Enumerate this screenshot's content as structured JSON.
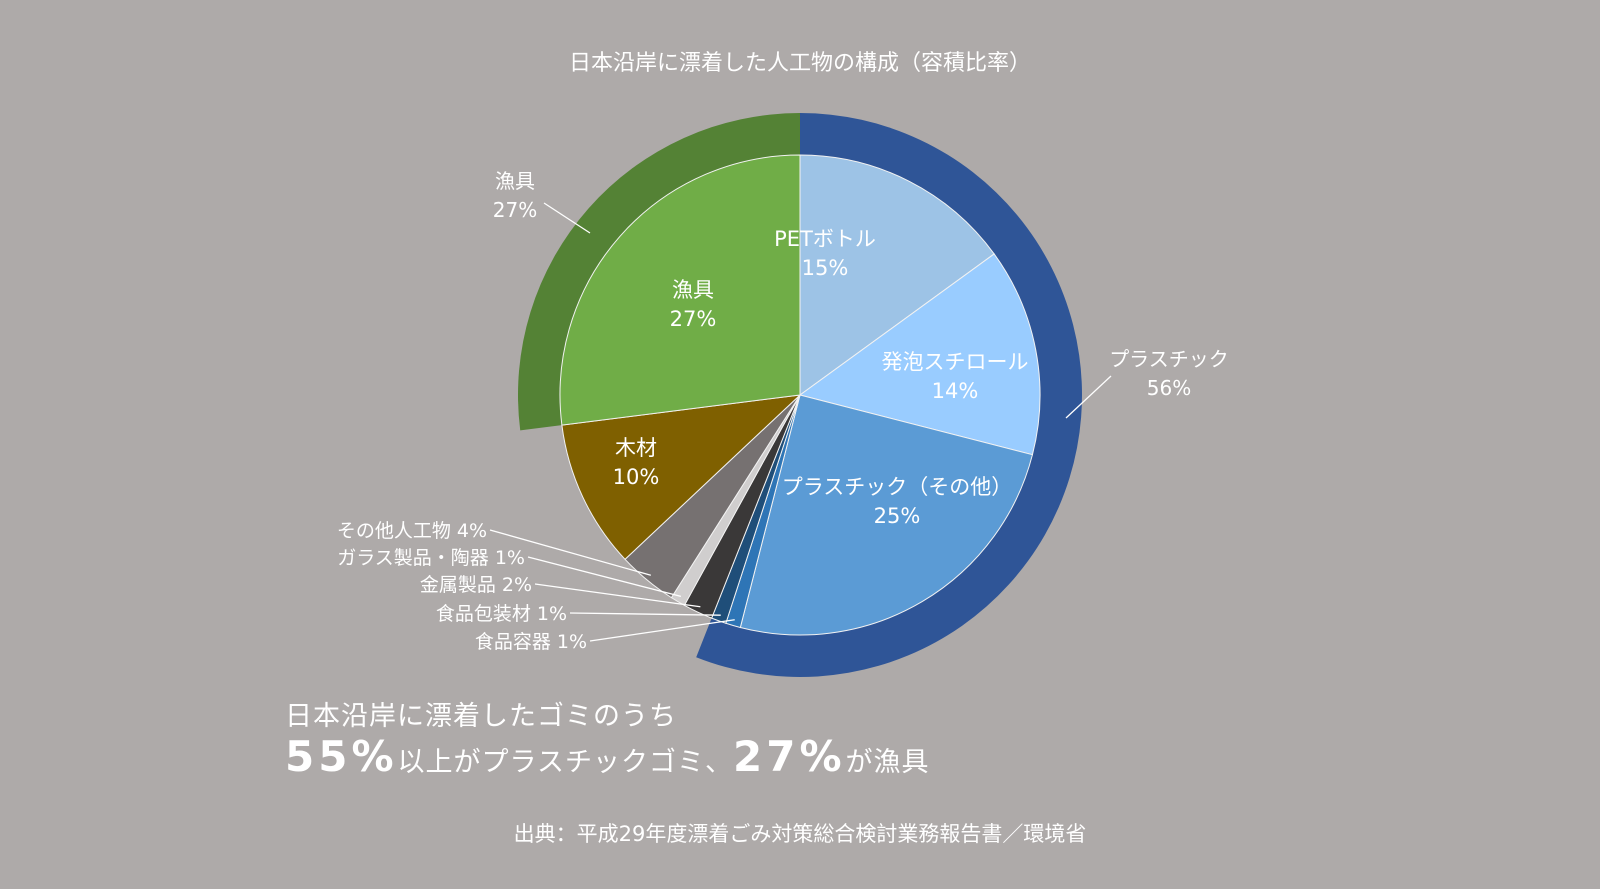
{
  "chart_data": {
    "type": "pie",
    "title": "日本沿岸に漂着した人工物の構成（容積比率）",
    "inner": [
      {
        "label": "PETボトル",
        "value": 15,
        "display": "15%",
        "color": "#9dc3e6"
      },
      {
        "label": "発泡スチロール",
        "value": 14,
        "display": "14%",
        "color": "#99ccff"
      },
      {
        "label": "プラスチック（その他）",
        "value": 25,
        "display": "25%",
        "color": "#5b9bd5"
      },
      {
        "label": "食品容器",
        "value": 1,
        "display": "1%",
        "color": "#2e75b6"
      },
      {
        "label": "食品包装材",
        "value": 1,
        "display": "1%",
        "color": "#1f4e79"
      },
      {
        "label": "金属製品",
        "value": 2,
        "display": "2%",
        "color": "#3a3838"
      },
      {
        "label": "ガラス製品・陶器",
        "value": 1,
        "display": "1%",
        "color": "#d0cece"
      },
      {
        "label": "その他人工物",
        "value": 4,
        "display": "4%",
        "color": "#767171"
      },
      {
        "label": "木材",
        "value": 10,
        "display": "10%",
        "color": "#7f6000"
      },
      {
        "label": "漁具",
        "value": 27,
        "display": "27%",
        "color": "#70ad47"
      }
    ],
    "outer": [
      {
        "label": "プラスチック",
        "value": 56,
        "display": "56%",
        "color": "#2f5597",
        "from": 0,
        "to": 56
      },
      {
        "label": "漁具",
        "value": 27,
        "display": "27%",
        "color": "#548235",
        "from": 73,
        "to": 100
      }
    ]
  },
  "summary": {
    "line1": "日本沿岸に漂着したゴミのうち",
    "big1": "55%",
    "mid": "以上がプラスチックゴミ、",
    "big2": "27%",
    "end": "が漁具"
  },
  "source": "出典：平成29年度漂着ごみ対策総合検討業務報告書／環境省"
}
